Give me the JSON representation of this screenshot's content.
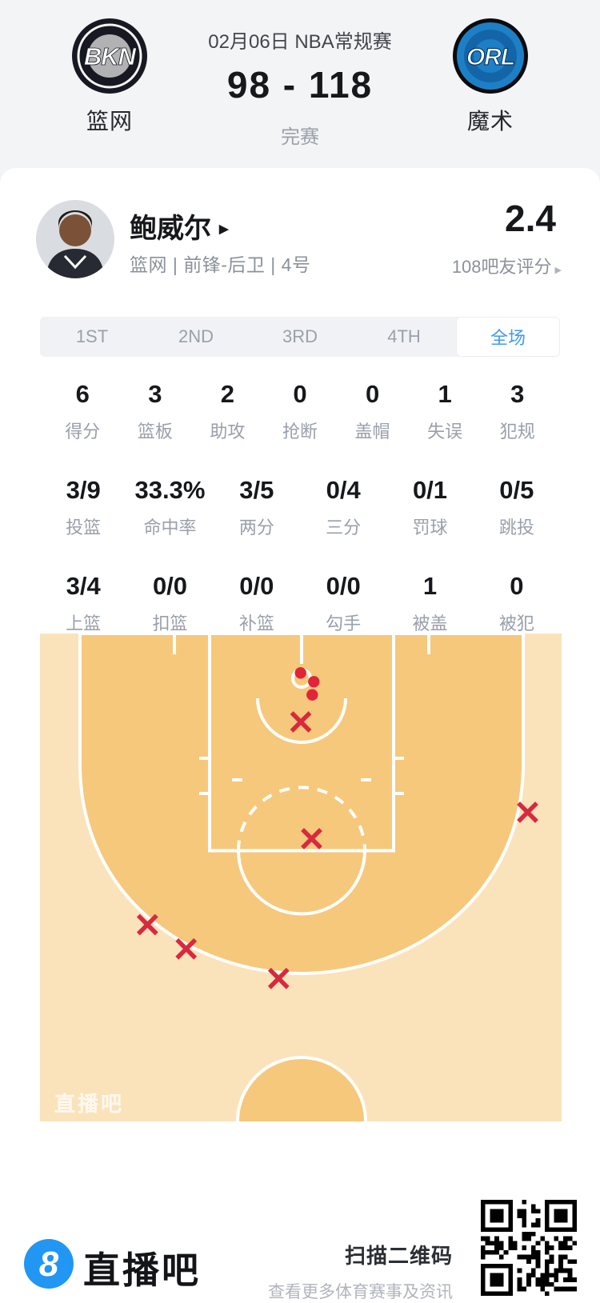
{
  "header": {
    "title": "02月06日 NBA常规赛",
    "score": "98 - 118",
    "status": "完赛",
    "home": {
      "abbr": "BKN",
      "name": "篮网"
    },
    "away": {
      "abbr": "ORL",
      "name": "魔术"
    }
  },
  "player": {
    "name": "鲍威尔",
    "meta": "篮网 | 前锋-后卫 | 4号",
    "rating": "2.4",
    "rating_caption": "108吧友评分"
  },
  "tabs": {
    "items": [
      "1ST",
      "2ND",
      "3RD",
      "4TH",
      "全场"
    ],
    "active": "全场"
  },
  "stats": {
    "row1": [
      {
        "value": "6",
        "label": "得分"
      },
      {
        "value": "3",
        "label": "篮板"
      },
      {
        "value": "2",
        "label": "助攻"
      },
      {
        "value": "0",
        "label": "抢断"
      },
      {
        "value": "0",
        "label": "盖帽"
      },
      {
        "value": "1",
        "label": "失误"
      },
      {
        "value": "3",
        "label": "犯规"
      }
    ],
    "row2": [
      {
        "value": "3/9",
        "label": "投篮"
      },
      {
        "value": "33.3%",
        "label": "命中率"
      },
      {
        "value": "3/5",
        "label": "两分"
      },
      {
        "value": "0/4",
        "label": "三分"
      },
      {
        "value": "0/1",
        "label": "罚球"
      },
      {
        "value": "0/5",
        "label": "跳投"
      }
    ],
    "row3": [
      {
        "value": "3/4",
        "label": "上篮"
      },
      {
        "value": "0/0",
        "label": "扣篮"
      },
      {
        "value": "0/0",
        "label": "补篮"
      },
      {
        "value": "0/0",
        "label": "勾手"
      },
      {
        "value": "1",
        "label": "被盖"
      },
      {
        "value": "0",
        "label": "被犯"
      }
    ]
  },
  "court": {
    "watermark": "直播吧",
    "colors": {
      "inside_arc": "#f6c87b",
      "outside_arc": "#fae3bb",
      "line": "#ffffff",
      "made": "#e2243a",
      "missed": "#d8293f"
    },
    "shots": {
      "made": [
        [
          325.7,
          49.3
        ],
        [
          342.3,
          60.3
        ],
        [
          340.3,
          76.7
        ]
      ],
      "missed": [
        [
          326,
          110.5
        ],
        [
          339.5,
          256.5
        ],
        [
          609.5,
          223.5
        ],
        [
          134.3,
          364
        ],
        [
          182.7,
          394.3
        ],
        [
          298.3,
          431.3
        ]
      ]
    }
  },
  "footer": {
    "logo_char": "8",
    "brand": "直播吧",
    "qr_title": "扫描二维码",
    "qr_subtitle": "查看更多体育赛事及资讯"
  }
}
